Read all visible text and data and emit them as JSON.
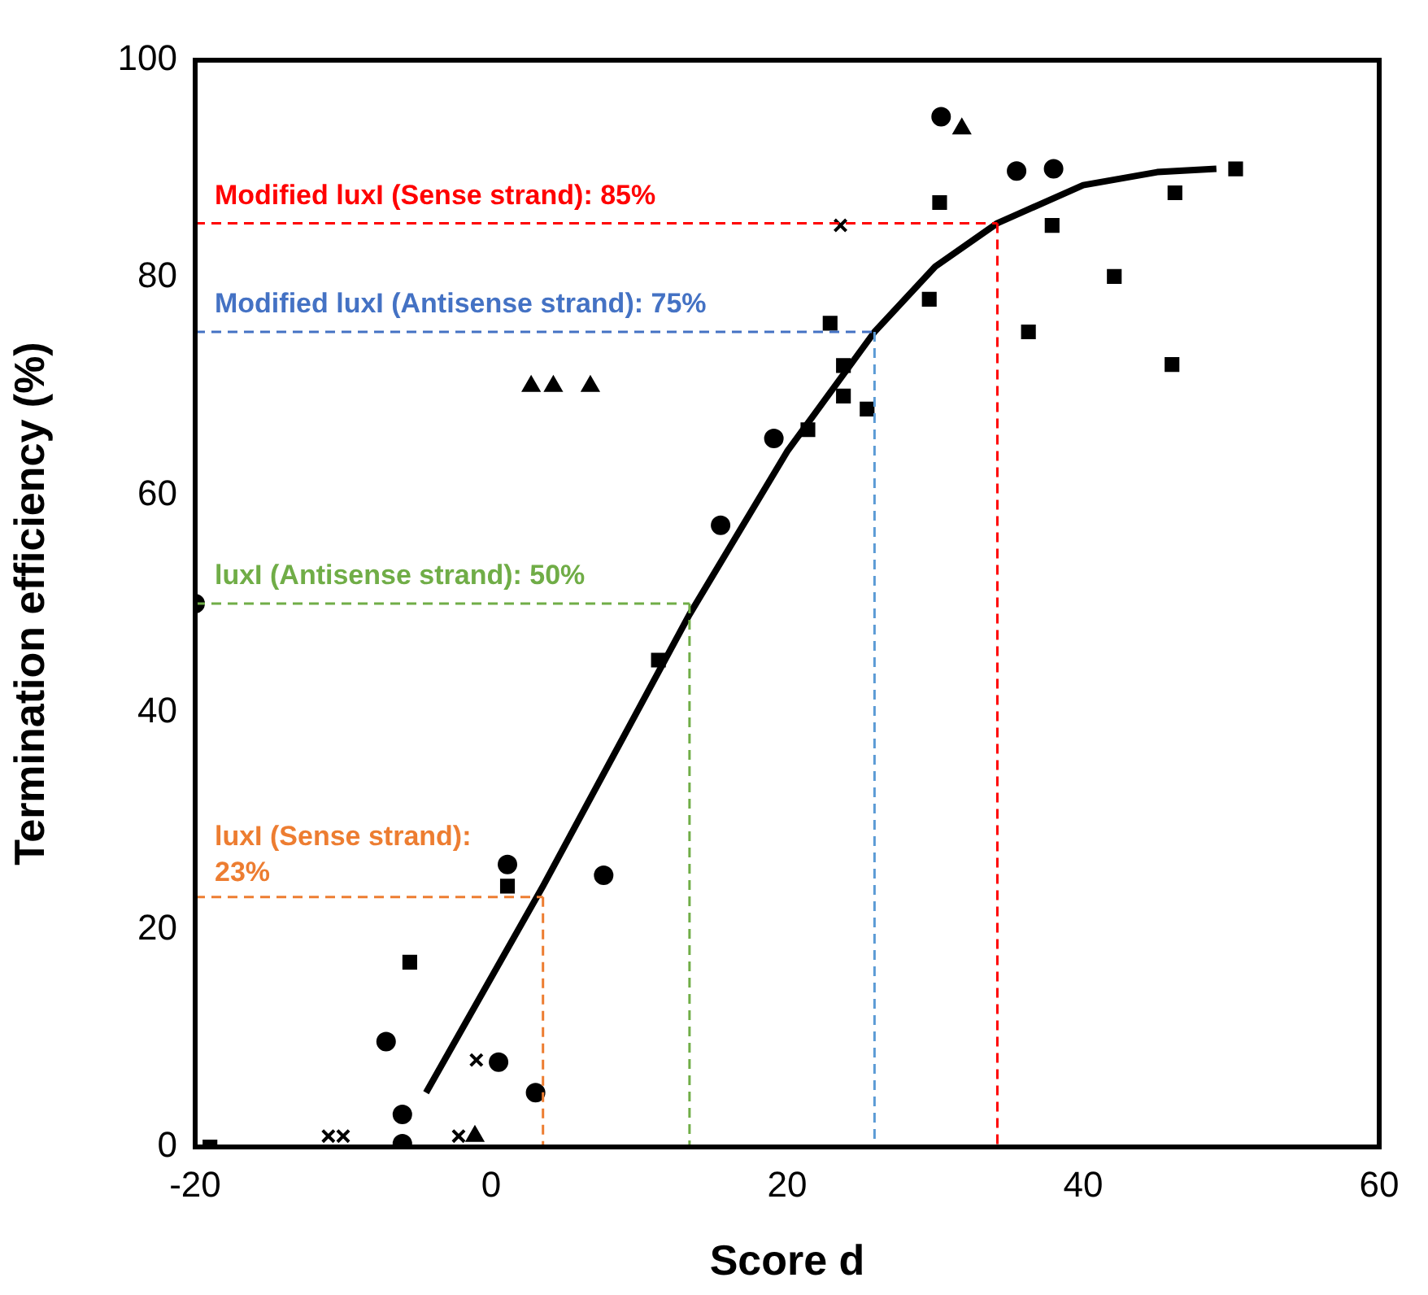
{
  "chart_data": {
    "type": "scatter",
    "xlabel": "Score d",
    "ylabel": "Termination efficiency (%)",
    "xlim": [
      -20,
      60
    ],
    "ylim": [
      0,
      100
    ],
    "xticks": [
      -20,
      0,
      20,
      40,
      60
    ],
    "yticks": [
      0,
      20,
      40,
      60,
      80,
      100
    ],
    "grid": false,
    "legend": false,
    "series": [
      {
        "marker": "circle",
        "color": "#000000",
        "x": [
          -20,
          -6,
          1.1,
          15.5,
          19.1,
          30.4,
          -7.1,
          -6,
          0.5,
          3,
          7.6,
          35.5,
          38
        ],
        "values": [
          50,
          3,
          26,
          57.2,
          65.2,
          94.8,
          9.7,
          0.3,
          7.8,
          5,
          25,
          89.8,
          90
        ]
      },
      {
        "marker": "square",
        "color": "#000000",
        "x": [
          -19,
          -5.5,
          1.1,
          11.3,
          21.4,
          30.3,
          46.2,
          50.3,
          22.9,
          23.8,
          23.8,
          25.4,
          29.6,
          37.9,
          36.3,
          42.1,
          46
        ],
        "values": [
          0,
          17,
          24,
          44.8,
          66,
          86.9,
          87.8,
          90,
          75.8,
          71.9,
          69.1,
          67.9,
          78,
          84.8,
          75,
          80.1,
          72
        ]
      },
      {
        "marker": "triangle",
        "color": "#000000",
        "x": [
          2.7,
          4.2,
          6.7,
          31.8,
          -1.1
        ],
        "values": [
          70,
          70,
          70,
          93.7,
          1
        ]
      },
      {
        "marker": "cross",
        "color": "#000000",
        "x": [
          23.6,
          -11,
          -10,
          -1,
          -2.2
        ],
        "values": [
          84.8,
          1,
          1,
          8,
          1
        ]
      },
      {
        "type": "line",
        "marker": "none",
        "line_style": "solid",
        "color": "#000000",
        "x": [
          -4.4,
          3.5,
          13.4,
          20,
          25.9,
          30,
          34.2,
          40,
          45,
          49
        ],
        "values": [
          5,
          24,
          49,
          64,
          75,
          81,
          85,
          88.5,
          89.7,
          90
        ]
      }
    ],
    "ref_lines": [
      {
        "axis": "y",
        "value": 85,
        "label": "Modified luxI (Sense strand): 85%",
        "color": "#ff0000",
        "line_style": "dashed"
      },
      {
        "axis": "x",
        "value": 34.2,
        "color": "#ff0000",
        "line_style": "dashed"
      },
      {
        "axis": "y",
        "value": 75,
        "label": "Modified luxI (Antisense strand): 75%",
        "color": "#4472c4",
        "line_style": "dashed"
      },
      {
        "axis": "x",
        "value": 25.9,
        "color": "#5b9bd5",
        "line_style": "dashed"
      },
      {
        "axis": "y",
        "value": 50,
        "label": "luxI (Antisense strand): 50%",
        "color": "#70ad47",
        "line_style": "dashed"
      },
      {
        "axis": "x",
        "value": 13.4,
        "color": "#70ad47",
        "line_style": "dashed"
      },
      {
        "axis": "y",
        "value": 23,
        "label": "luxI (Sense strand): 23%",
        "color": "#ed7d31",
        "line_style": "dashed"
      },
      {
        "axis": "x",
        "value": 3.5,
        "color": "#ed7d31",
        "line_style": "dashed"
      }
    ]
  }
}
